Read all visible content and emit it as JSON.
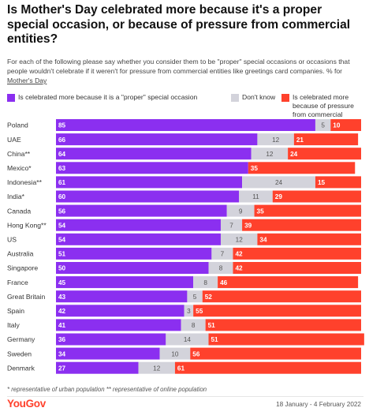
{
  "title": "Is Mother's Day celebrated more because it's a proper special occasion, or because of pressure from commercial entities?",
  "subtitle_main": "For each of the following please say whether you consider them to be \"proper\" special occasions or occasions that people wouldn't celebrate if it weren't for pressure from commercial entities like greetings card companies. % for ",
  "subtitle_link": "Mother's Day",
  "footnote": "* representative of urban population ** representative of online population",
  "brand": "YouGov",
  "date_range": "18 January - 4 February 2022",
  "colors": {
    "proper": "#8b2ff0",
    "dontknow": "#d3d3db",
    "pressure": "#ff412c"
  },
  "chart_data": {
    "type": "bar",
    "stacked": true,
    "orientation": "horizontal",
    "xlim": [
      0,
      100
    ],
    "categories": [
      "Poland",
      "UAE",
      "China**",
      "Mexico*",
      "Indonesia**",
      "India*",
      "Canada",
      "Hong Kong**",
      "US",
      "Australia",
      "Singapore",
      "France",
      "Great Britain",
      "Spain",
      "Italy",
      "Germany",
      "Sweden",
      "Denmark"
    ],
    "series": [
      {
        "name": "Is celebrated more because it is a \"proper\" special occasion",
        "color": "#8b2ff0",
        "values": [
          85,
          66,
          64,
          63,
          61,
          60,
          56,
          54,
          54,
          51,
          50,
          45,
          43,
          42,
          41,
          36,
          34,
          27
        ]
      },
      {
        "name": "Don't know",
        "color": "#d3d3db",
        "values": [
          5,
          12,
          12,
          null,
          24,
          11,
          9,
          7,
          12,
          7,
          8,
          8,
          5,
          3,
          8,
          14,
          10,
          12
        ]
      },
      {
        "name": "Is celebrated more because of pressure from commercial entities",
        "color": "#ff412c",
        "values": [
          10,
          21,
          24,
          35,
          15,
          29,
          35,
          39,
          34,
          42,
          42,
          46,
          52,
          55,
          51,
          51,
          56,
          61
        ]
      }
    ]
  }
}
